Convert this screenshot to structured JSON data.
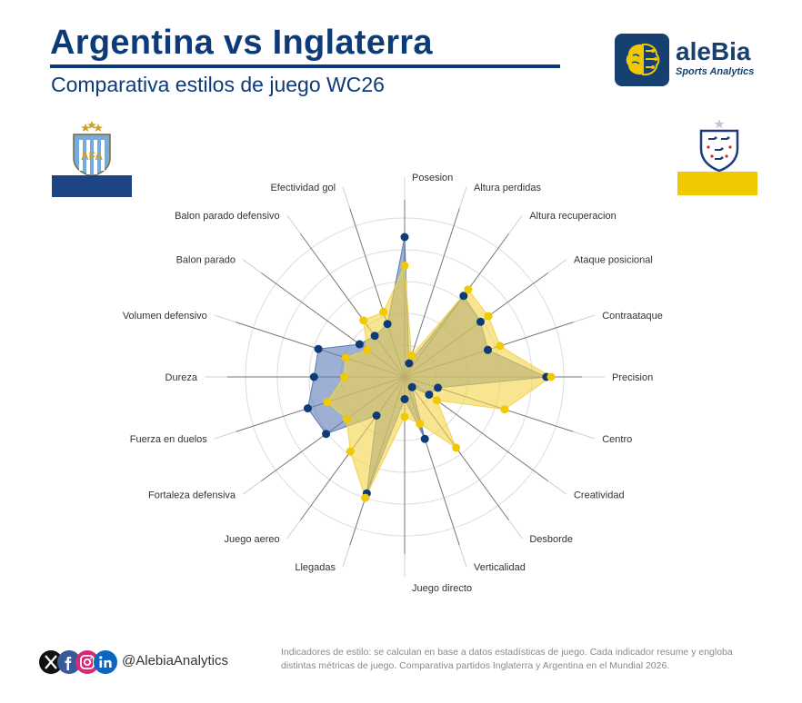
{
  "header": {
    "title": "Argentina vs Inglaterra",
    "subtitle": "Comparativa estilos de juego WC26"
  },
  "brand": {
    "name": "aleBia",
    "tagline": "Sports Analytics",
    "icon": "brain-icon"
  },
  "teams": {
    "argentina": {
      "crest_text": "AFA",
      "color": "#1d4585"
    },
    "england": {
      "color": "#f0c900"
    }
  },
  "colors": {
    "argentina_fill": "#5b7cb6",
    "argentina_point": "#0d3b7a",
    "england_fill": "#f4d448",
    "england_point": "#f0c900",
    "grid": "#dddddd",
    "axis_line": "#777777",
    "label": "#333333"
  },
  "chart_data": {
    "type": "radar",
    "title": "Comparativa estilos de juego WC26",
    "categories": [
      "Posesion",
      "Altura perdidas",
      "Altura recuperacion",
      "Ataque posicional",
      "Contraataque",
      "Precision",
      "Centro",
      "Creatividad",
      "Desborde",
      "Verticalidad",
      "Juego directo",
      "Llegadas",
      "Juego aereo",
      "Fortaleza defensiva",
      "Fuerza en duelos",
      "Dureza",
      "Volumen defensivo",
      "Balon parado",
      "Balon parado defensivo",
      "Efectividad gol"
    ],
    "range": [
      0,
      100
    ],
    "grid_rings": 5,
    "legend": "none",
    "series": [
      {
        "team": "argentina",
        "values": [
          88,
          9,
          63,
          59,
          55,
          89,
          22,
          19,
          8,
          41,
          14,
          77,
          30,
          61,
          64,
          57,
          57,
          35,
          32,
          35
        ]
      },
      {
        "team": "england",
        "values": [
          70,
          14,
          68,
          65,
          63,
          92,
          66,
          25,
          55,
          31,
          25,
          80,
          58,
          45,
          51,
          38,
          39,
          29,
          44,
          43
        ]
      }
    ]
  },
  "footer": {
    "social_icons": [
      "x-icon",
      "facebook-icon",
      "instagram-icon",
      "linkedin-icon"
    ],
    "handle": "@AlebiaAnalytics",
    "note": "Indicadores de estilo: se calculan en base a datos estadísticas de juego. Cada indicador resume y engloba distintas métricas de juego. Comparativa partidos Inglaterra y Argentina en el Mundial 2026."
  }
}
